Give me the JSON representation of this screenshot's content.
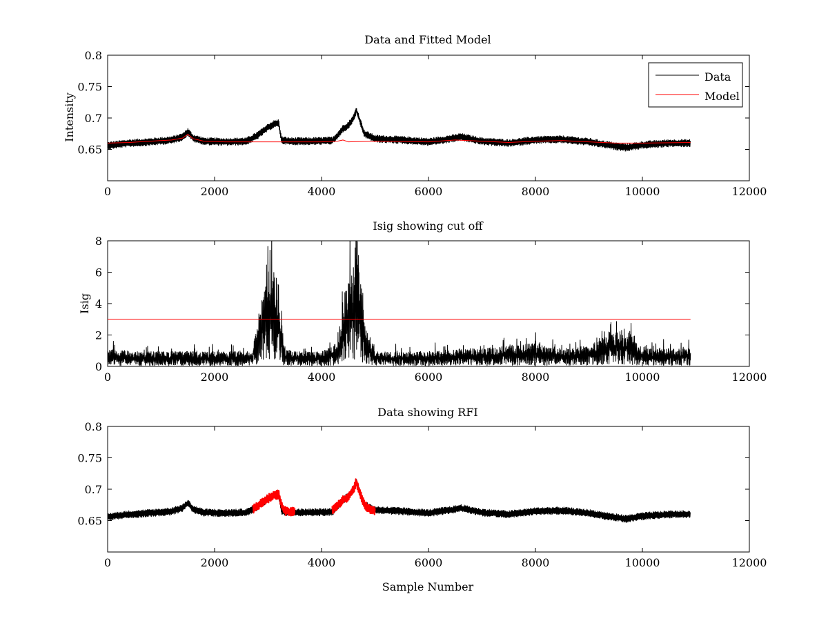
{
  "figure": {
    "background": "#ffffff",
    "axes_color": "#000000",
    "data_color": "#000000",
    "highlight_color": "#ff0000"
  },
  "chart_data": [
    {
      "type": "line",
      "title": "Data and Fitted Model",
      "xlabel": "",
      "ylabel": "Intensity",
      "xlim": [
        0,
        12000
      ],
      "ylim": [
        0.6,
        0.8
      ],
      "xticks": [
        0,
        2000,
        4000,
        6000,
        8000,
        10000,
        12000
      ],
      "yticks": [
        0.65,
        0.7,
        0.75,
        0.8
      ],
      "grid": false,
      "legend": {
        "placement": "top-right",
        "entries": [
          {
            "label": "Data",
            "color": "#000000"
          },
          {
            "label": "Model",
            "color": "#ff0000"
          }
        ]
      },
      "series": [
        {
          "name": "Data",
          "color": "#000000",
          "noise": 0.006,
          "x": [
            0,
            400,
            800,
            1200,
            1400,
            1500,
            1600,
            1800,
            2200,
            2600,
            2800,
            3000,
            3100,
            3200,
            3250,
            3400,
            3800,
            4200,
            4300,
            4400,
            4500,
            4600,
            4650,
            4700,
            4800,
            5000,
            5500,
            6000,
            6500,
            6600,
            7000,
            7500,
            8000,
            8500,
            9000,
            9500,
            9700,
            10000,
            10500,
            10900
          ],
          "values": [
            0.656,
            0.66,
            0.662,
            0.665,
            0.67,
            0.678,
            0.668,
            0.663,
            0.662,
            0.663,
            0.672,
            0.685,
            0.69,
            0.692,
            0.665,
            0.663,
            0.663,
            0.664,
            0.672,
            0.683,
            0.688,
            0.7,
            0.712,
            0.7,
            0.675,
            0.667,
            0.665,
            0.662,
            0.668,
            0.67,
            0.663,
            0.66,
            0.665,
            0.666,
            0.662,
            0.655,
            0.653,
            0.657,
            0.66,
            0.66
          ]
        },
        {
          "name": "Model",
          "color": "#ff0000",
          "noise": 0,
          "x": [
            0,
            400,
            800,
            1200,
            1400,
            1500,
            1600,
            1800,
            2200,
            3000,
            4000,
            4300,
            4400,
            4500,
            5000,
            6000,
            6500,
            7000,
            7500,
            8000,
            8500,
            9000,
            9500,
            10000,
            10900
          ],
          "values": [
            0.66,
            0.661,
            0.663,
            0.665,
            0.668,
            0.674,
            0.667,
            0.663,
            0.662,
            0.662,
            0.662,
            0.663,
            0.665,
            0.662,
            0.663,
            0.662,
            0.665,
            0.663,
            0.661,
            0.663,
            0.664,
            0.662,
            0.66,
            0.66,
            0.661
          ]
        }
      ]
    },
    {
      "type": "line",
      "title": "Isig showing cut off",
      "xlabel": "",
      "ylabel": "Isig",
      "xlim": [
        0,
        12000
      ],
      "ylim": [
        0,
        8
      ],
      "xticks": [
        0,
        2000,
        4000,
        6000,
        8000,
        10000,
        12000
      ],
      "yticks": [
        0,
        2,
        4,
        6,
        8
      ],
      "grid": false,
      "series": [
        {
          "name": "",
          "color": "#000000",
          "noise_spikes": true,
          "x": [
            0,
            500,
            1000,
            1500,
            2000,
            2500,
            2700,
            2800,
            2900,
            3000,
            3100,
            3200,
            3300,
            3500,
            4000,
            4300,
            4400,
            4500,
            4600,
            4650,
            4700,
            4800,
            5000,
            6000,
            6500,
            7000,
            7500,
            8000,
            8500,
            9000,
            9300,
            9500,
            9800,
            10000,
            10500,
            10900
          ],
          "values": [
            0.6,
            0.5,
            0.5,
            0.5,
            0.5,
            0.5,
            0.5,
            1.5,
            2.6,
            3.2,
            3.3,
            2.8,
            0.6,
            0.5,
            0.5,
            0.8,
            2.3,
            3.0,
            3.2,
            5.2,
            3.5,
            1.5,
            0.5,
            0.5,
            0.6,
            0.6,
            0.7,
            0.8,
            0.6,
            0.7,
            1.1,
            1.3,
            1.1,
            0.6,
            0.6,
            0.6
          ]
        },
        {
          "name": "",
          "color": "#ff0000",
          "noise": 0,
          "x": [
            0,
            10900
          ],
          "values": [
            3,
            3
          ]
        }
      ]
    },
    {
      "type": "line",
      "title": "Data showing RFI",
      "xlabel": "Sample Number",
      "ylabel": "",
      "xlim": [
        0,
        12000
      ],
      "ylim": [
        0.6,
        0.8
      ],
      "xticks": [
        0,
        2000,
        4000,
        6000,
        8000,
        10000,
        12000
      ],
      "yticks": [
        0.65,
        0.7,
        0.75,
        0.8
      ],
      "grid": false,
      "series": [
        {
          "name": "",
          "color": "#000000",
          "noise": 0.006,
          "x": [
            0,
            400,
            800,
            1200,
            1400,
            1500,
            1600,
            1800,
            2200,
            2600,
            2800,
            3000,
            3100,
            3200,
            3250,
            3400,
            3800,
            4200,
            4300,
            4400,
            4500,
            4600,
            4650,
            4700,
            4800,
            5000,
            5500,
            6000,
            6500,
            6600,
            7000,
            7500,
            8000,
            8500,
            9000,
            9500,
            9700,
            10000,
            10500,
            10900
          ],
          "values": [
            0.656,
            0.66,
            0.662,
            0.665,
            0.67,
            0.678,
            0.668,
            0.663,
            0.662,
            0.663,
            0.672,
            0.685,
            0.69,
            0.692,
            0.665,
            0.663,
            0.663,
            0.664,
            0.672,
            0.683,
            0.688,
            0.7,
            0.712,
            0.7,
            0.675,
            0.667,
            0.665,
            0.662,
            0.668,
            0.67,
            0.663,
            0.66,
            0.665,
            0.666,
            0.662,
            0.655,
            0.653,
            0.657,
            0.66,
            0.66
          ]
        },
        {
          "name": "",
          "color": "#ff0000",
          "noise": 0.007,
          "thick": true,
          "x": [
            2720,
            2800,
            2900,
            3000,
            3100,
            3200,
            3250,
            3300,
            3400,
            3500
          ],
          "values": [
            0.668,
            0.673,
            0.68,
            0.685,
            0.69,
            0.692,
            0.675,
            0.666,
            0.664,
            0.664
          ]
        },
        {
          "name": "",
          "color": "#ff0000",
          "noise": 0.007,
          "thick": true,
          "x": [
            4200,
            4300,
            4400,
            4500,
            4600,
            4650,
            4700,
            4800,
            4900,
            5000
          ],
          "values": [
            0.667,
            0.675,
            0.683,
            0.688,
            0.7,
            0.712,
            0.698,
            0.676,
            0.668,
            0.665
          ]
        }
      ]
    }
  ]
}
